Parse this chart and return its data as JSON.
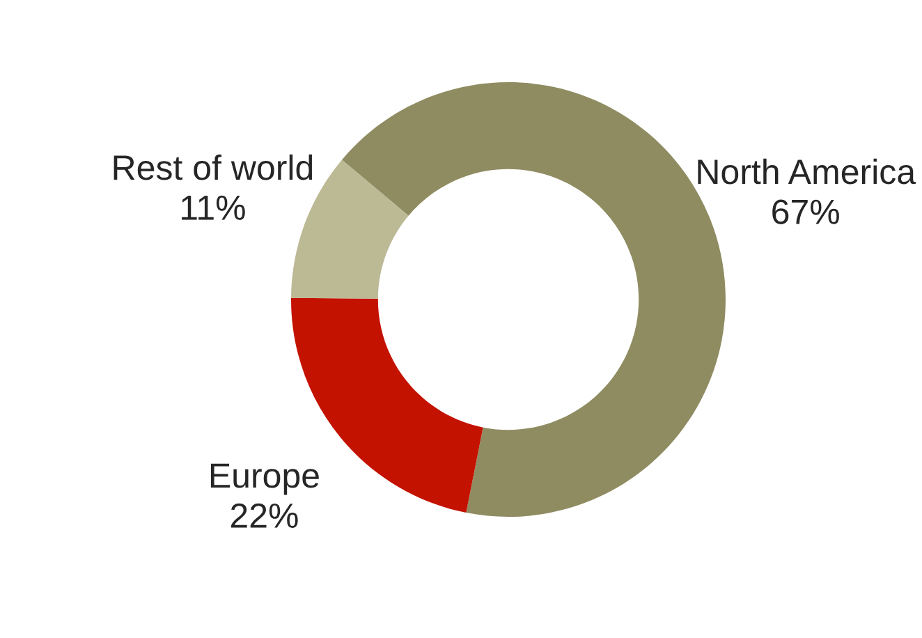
{
  "chart_data": {
    "type": "donut",
    "categories": [
      "North America",
      "Europe",
      "Rest of world"
    ],
    "values": [
      67,
      22,
      11
    ],
    "colors": [
      "#8f8c62",
      "#c41200",
      "#bcb995"
    ],
    "value_labels": [
      "67%",
      "22%",
      "11%"
    ]
  }
}
